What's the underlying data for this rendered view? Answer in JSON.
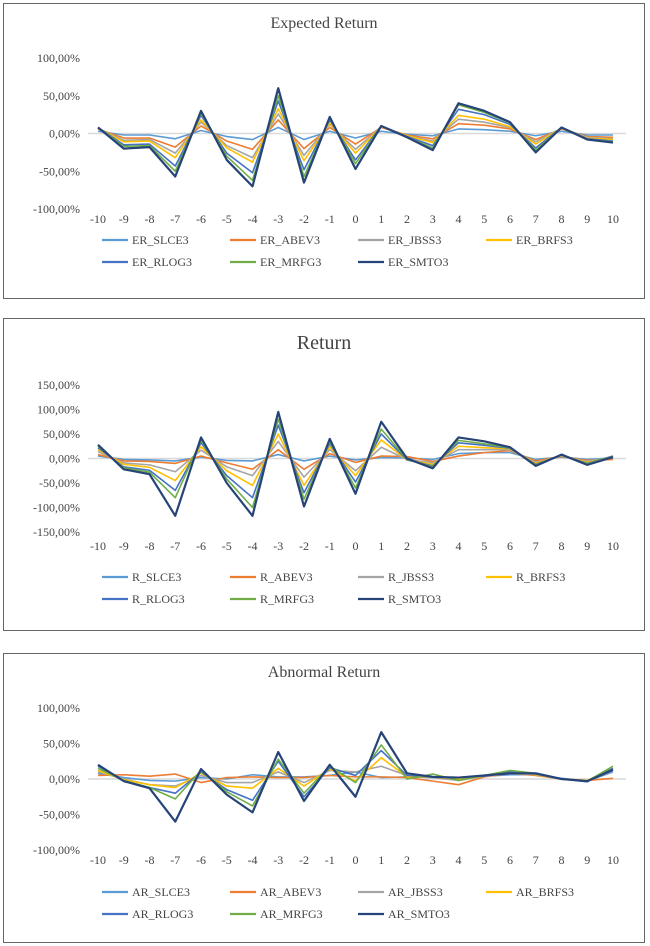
{
  "colors": {
    "SLCE3": "#5b9bd5",
    "ABEV3": "#ed7d31",
    "JBSS3": "#a5a5a5",
    "BRFS3": "#ffc000",
    "RLOG3": "#4472c4",
    "MRFG3": "#70ad47",
    "SMTO3": "#264478"
  },
  "chart_data": [
    {
      "type": "line",
      "title": "Expected Return",
      "x": [
        -10,
        -9,
        -8,
        -7,
        -6,
        -5,
        -4,
        -3,
        -2,
        -1,
        0,
        1,
        2,
        3,
        4,
        5,
        6,
        7,
        8,
        9,
        10
      ],
      "ylim": [
        -100,
        100
      ],
      "yticks": [
        "100,00%",
        "50,00%",
        "0,00%",
        "-50,00%",
        "-100,00%"
      ],
      "ytick_values": [
        100,
        50,
        0,
        -50,
        -100
      ],
      "grid": "zero line only",
      "legend": "bottom",
      "series": [
        {
          "name": "ER_SLCE3",
          "key": "SLCE3",
          "values": [
            3,
            -2,
            -2,
            -7,
            4,
            -4,
            -8,
            8,
            -8,
            3,
            -6,
            3,
            -1,
            -3,
            6,
            5,
            3,
            -3,
            3,
            -2,
            -2
          ]
        },
        {
          "name": "ER_ABEV3",
          "key": "ABEV3",
          "values": [
            6,
            -6,
            -6,
            -18,
            10,
            -10,
            -21,
            18,
            -20,
            8,
            -14,
            8,
            -2,
            -7,
            13,
            11,
            6,
            -8,
            6,
            -4,
            -5
          ]
        },
        {
          "name": "ER_JBSS3",
          "key": "JBSS3",
          "values": [
            7,
            -9,
            -8,
            -26,
            15,
            -16,
            -32,
            26,
            -29,
            12,
            -21,
            9,
            -3,
            -10,
            19,
            15,
            8,
            -11,
            7,
            -5,
            -7
          ]
        },
        {
          "name": "ER_BRFS3",
          "key": "BRFS3",
          "values": [
            7,
            -11,
            -10,
            -32,
            18,
            -19,
            -38,
            33,
            -36,
            14,
            -26,
            9,
            -3,
            -12,
            24,
            19,
            9,
            -14,
            7,
            -6,
            -8
          ]
        },
        {
          "name": "ER_RLOG3",
          "key": "RLOG3",
          "values": [
            8,
            -15,
            -14,
            -43,
            24,
            -26,
            -52,
            43,
            -48,
            18,
            -35,
            10,
            -4,
            -16,
            32,
            25,
            12,
            -19,
            8,
            -7,
            -10
          ]
        },
        {
          "name": "ER_MRFG3",
          "key": "MRFG3",
          "values": [
            8,
            -17,
            -16,
            -50,
            27,
            -30,
            -62,
            50,
            -57,
            20,
            -40,
            10,
            -5,
            -19,
            38,
            28,
            14,
            -22,
            8,
            -8,
            -11
          ]
        },
        {
          "name": "ER_SMTO3",
          "key": "SMTO3",
          "values": [
            8,
            -20,
            -18,
            -57,
            30,
            -35,
            -70,
            60,
            -65,
            22,
            -47,
            10,
            -5,
            -22,
            40,
            30,
            15,
            -25,
            8,
            -8,
            -12
          ]
        }
      ]
    },
    {
      "type": "line",
      "title": "Return",
      "x": [
        -10,
        -9,
        -8,
        -7,
        -6,
        -5,
        -4,
        -3,
        -2,
        -1,
        0,
        1,
        2,
        3,
        4,
        5,
        6,
        7,
        8,
        9,
        10
      ],
      "ylim": [
        -150,
        150
      ],
      "yticks": [
        "150,00%",
        "100,00%",
        "50,00%",
        "0,00%",
        "-50,00%",
        "-100,00%",
        "-150,00%"
      ],
      "ytick_values": [
        150,
        100,
        50,
        0,
        -50,
        -100,
        -150
      ],
      "grid": "zero line only",
      "legend": "bottom",
      "series": [
        {
          "name": "R_SLCE3",
          "key": "SLCE3",
          "values": [
            5,
            -2,
            -3,
            -5,
            3,
            -4,
            -5,
            8,
            -5,
            5,
            -3,
            2,
            1,
            -2,
            10,
            12,
            12,
            -2,
            3,
            -2,
            1
          ]
        },
        {
          "name": "R_ABEV3",
          "key": "ABEV3",
          "values": [
            8,
            -5,
            -6,
            -10,
            5,
            -9,
            -22,
            18,
            -22,
            10,
            -8,
            5,
            4,
            -6,
            5,
            12,
            16,
            -5,
            4,
            -4,
            -2
          ]
        },
        {
          "name": "R_JBSS3",
          "key": "JBSS3",
          "values": [
            14,
            -9,
            -13,
            -27,
            17,
            -17,
            -35,
            35,
            -38,
            18,
            -25,
            23,
            -2,
            -9,
            18,
            18,
            18,
            -8,
            5,
            -6,
            3
          ]
        },
        {
          "name": "R_BRFS3",
          "key": "BRFS3",
          "values": [
            18,
            -12,
            -18,
            -45,
            24,
            -25,
            -55,
            50,
            -55,
            24,
            -35,
            38,
            -3,
            -12,
            25,
            22,
            20,
            -10,
            6,
            -8,
            4
          ]
        },
        {
          "name": "R_RLOG3",
          "key": "RLOG3",
          "values": [
            22,
            -17,
            -24,
            -65,
            32,
            -35,
            -80,
            68,
            -70,
            30,
            -48,
            50,
            -3,
            -15,
            32,
            27,
            21,
            -12,
            7,
            -10,
            5
          ]
        },
        {
          "name": "R_MRFG3",
          "key": "MRFG3",
          "values": [
            25,
            -19,
            -28,
            -80,
            37,
            -42,
            -100,
            80,
            -83,
            34,
            -60,
            60,
            -2,
            -17,
            37,
            30,
            22,
            -13,
            7,
            -11,
            4
          ]
        },
        {
          "name": "R_SMTO3",
          "key": "SMTO3",
          "values": [
            28,
            -22,
            -32,
            -117,
            43,
            -50,
            -117,
            95,
            -98,
            40,
            -72,
            75,
            0,
            -20,
            43,
            35,
            23,
            -15,
            8,
            -13,
            3
          ]
        }
      ]
    },
    {
      "type": "line",
      "title": "Abnormal Return",
      "x": [
        -10,
        -9,
        -8,
        -7,
        -6,
        -5,
        -4,
        -3,
        -2,
        -1,
        0,
        1,
        2,
        3,
        4,
        5,
        6,
        7,
        8,
        9,
        10
      ],
      "ylim": [
        -100,
        100
      ],
      "yticks": [
        "100,00%",
        "50,00%",
        "0,00%",
        "-50,00%",
        "-100,00%"
      ],
      "ytick_values": [
        100,
        50,
        0,
        -50,
        -100
      ],
      "grid": "zero line only",
      "legend": "bottom",
      "series": [
        {
          "name": "AR_SLCE3",
          "key": "SLCE3",
          "values": [
            8,
            2,
            -2,
            -3,
            2,
            0,
            6,
            3,
            3,
            5,
            10,
            2,
            3,
            2,
            2,
            4,
            6,
            6,
            1,
            -3,
            10
          ]
        },
        {
          "name": "AR_ABEV3",
          "key": "ABEV3",
          "values": [
            5,
            6,
            4,
            7,
            -5,
            2,
            3,
            2,
            2,
            5,
            3,
            3,
            2,
            -3,
            -8,
            3,
            8,
            5,
            0,
            -2,
            1
          ]
        },
        {
          "name": "AR_JBSS3",
          "key": "JBSS3",
          "values": [
            10,
            0,
            -8,
            -10,
            5,
            -5,
            -5,
            10,
            -5,
            12,
            10,
            18,
            5,
            2,
            -2,
            4,
            8,
            6,
            0,
            -3,
            12
          ]
        },
        {
          "name": "AR_BRFS3",
          "key": "BRFS3",
          "values": [
            12,
            -1,
            -8,
            -12,
            8,
            -10,
            -13,
            15,
            -10,
            14,
            -3,
            30,
            3,
            3,
            0,
            4,
            12,
            6,
            0,
            -2,
            15
          ]
        },
        {
          "name": "AR_RLOG3",
          "key": "RLOG3",
          "values": [
            18,
            -3,
            -12,
            -20,
            10,
            -15,
            -30,
            25,
            -25,
            16,
            5,
            40,
            5,
            3,
            2,
            4,
            10,
            7,
            0,
            -4,
            15
          ]
        },
        {
          "name": "AR_MRFG3",
          "key": "MRFG3",
          "values": [
            15,
            -2,
            -12,
            -28,
            12,
            -18,
            -38,
            28,
            -20,
            18,
            -5,
            48,
            0,
            7,
            -2,
            5,
            12,
            8,
            0,
            -3,
            18
          ]
        },
        {
          "name": "AR_SMTO3",
          "key": "SMTO3",
          "values": [
            20,
            -3,
            -13,
            -60,
            14,
            -22,
            -47,
            38,
            -31,
            20,
            -25,
            66,
            8,
            3,
            2,
            5,
            8,
            8,
            0,
            -3,
            13
          ]
        }
      ]
    }
  ]
}
